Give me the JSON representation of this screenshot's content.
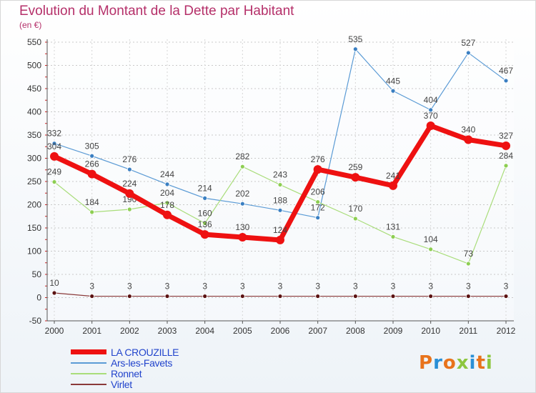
{
  "title": "Evolution du Montant de la Dette par Habitant",
  "subtitle": "(en €)",
  "logo": {
    "text": "Proxiti",
    "colors": [
      "#e8731c",
      "#2a8fd6",
      "#e8731c",
      "#8dc63f",
      "#2a8fd6",
      "#e8731c",
      "#8dc63f"
    ]
  },
  "chart_data": {
    "type": "line",
    "title": "Evolution du Montant de la Dette par Habitant",
    "ylabel": "(en €)",
    "x": [
      "2000",
      "2001",
      "2002",
      "2003",
      "2004",
      "2005",
      "2006",
      "2007",
      "2008",
      "2009",
      "2010",
      "2011",
      "2012"
    ],
    "ylim": [
      -50,
      550
    ],
    "yticks": [
      -50,
      0,
      50,
      100,
      150,
      200,
      250,
      300,
      350,
      400,
      450,
      500,
      550
    ],
    "grid": "horizontal",
    "legend_position": "bottom-left",
    "series": [
      {
        "name": "Ars-les-Favets",
        "color": "#5b9bd5",
        "marker": "#3a7fc2",
        "width": 1.2,
        "radius": 3,
        "values": [
          332,
          305,
          276,
          244,
          214,
          202,
          188,
          172,
          535,
          445,
          404,
          527,
          467
        ]
      },
      {
        "name": "Ronnet",
        "color": "#a9dd7a",
        "marker": "#8dce52",
        "width": 1.2,
        "radius": 3,
        "values": [
          249,
          184,
          190,
          204,
          160,
          282,
          243,
          206,
          170,
          131,
          104,
          73,
          284
        ]
      },
      {
        "name": "Virlet",
        "color": "#8a3a3a",
        "marker": "#5a1212",
        "width": 1.2,
        "radius": 3,
        "values": [
          10,
          3,
          3,
          3,
          3,
          3,
          3,
          3,
          3,
          3,
          3,
          3,
          3
        ]
      },
      {
        "name": "LA CROUZILLE",
        "color": "#ee1111",
        "marker": "#ee1111",
        "width": 7,
        "radius": 6,
        "values": [
          304,
          266,
          224,
          178,
          136,
          130,
          124,
          276,
          259,
          241,
          370,
          340,
          327
        ]
      }
    ],
    "legend_order": [
      "LA CROUZILLE",
      "Ars-les-Favets",
      "Ronnet",
      "Virlet"
    ]
  }
}
